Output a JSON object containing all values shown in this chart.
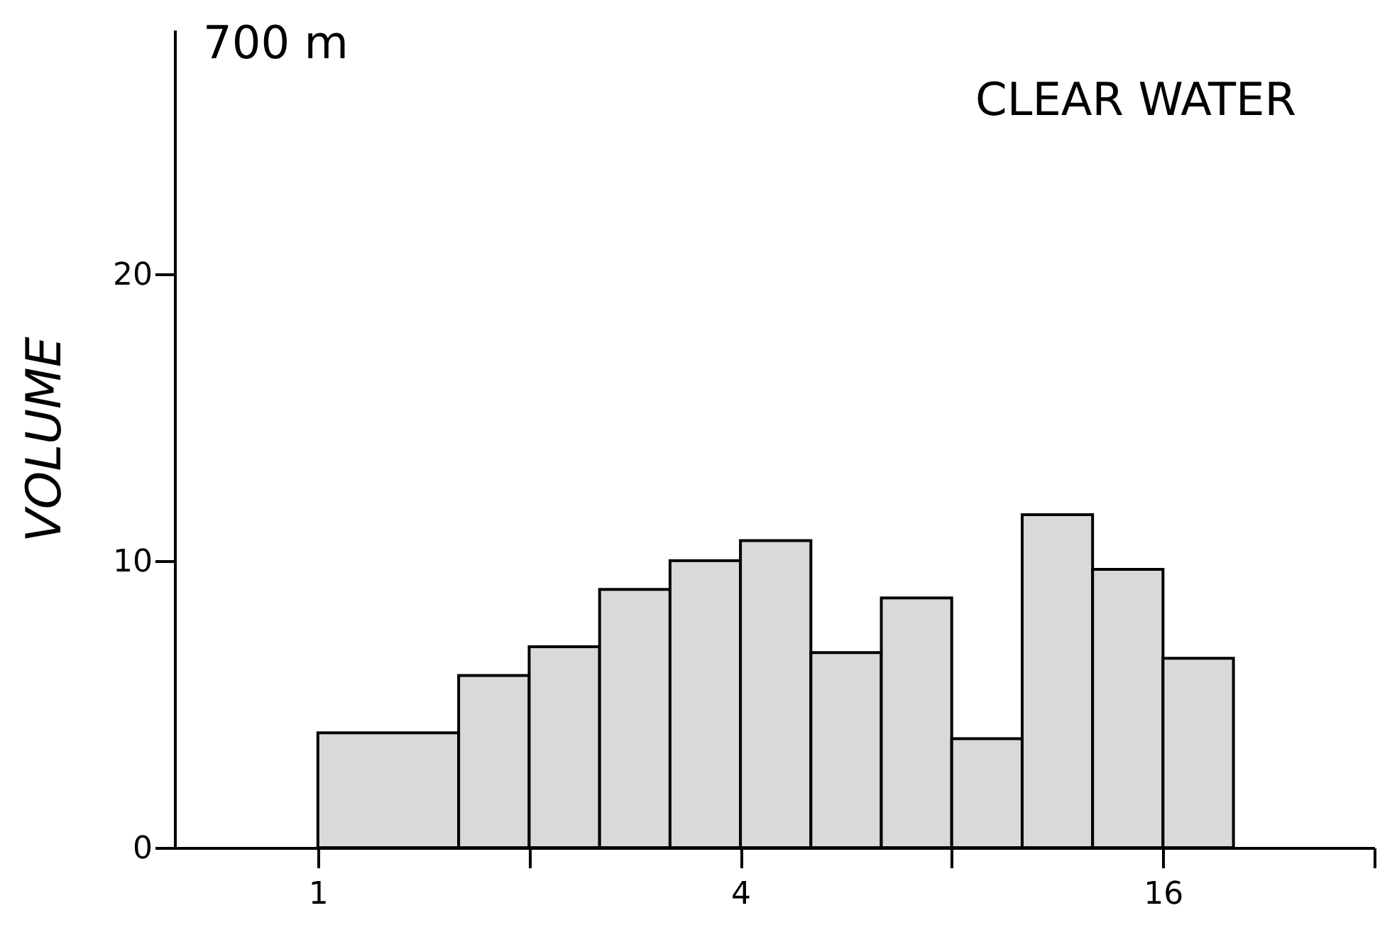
{
  "chart_data": {
    "type": "histogram",
    "ylabel": "VOLUME",
    "annotations": [
      "700 m",
      "CLEAR WATER"
    ],
    "bins": [
      1,
      1.587,
      2,
      2.52,
      3.175,
      4,
      5.04,
      6.35,
      8,
      10.08,
      12.7,
      16,
      20.16
    ],
    "values": [
      4,
      6,
      7,
      9,
      10,
      10.7,
      6.8,
      8.7,
      3.8,
      11.6,
      9.7,
      6.6
    ],
    "color": "#d9d9d9",
    "log": "x",
    "xlim": [
      0.625,
      32
    ],
    "xticks": [
      1,
      {
        "value": 2,
        "label": null
      },
      4,
      {
        "value": 8,
        "label": null
      },
      16,
      {
        "value": 32,
        "label": null
      }
    ],
    "ylim": [
      0,
      28.5
    ],
    "yticks": [
      0,
      10,
      20
    ],
    "grid": false
  }
}
